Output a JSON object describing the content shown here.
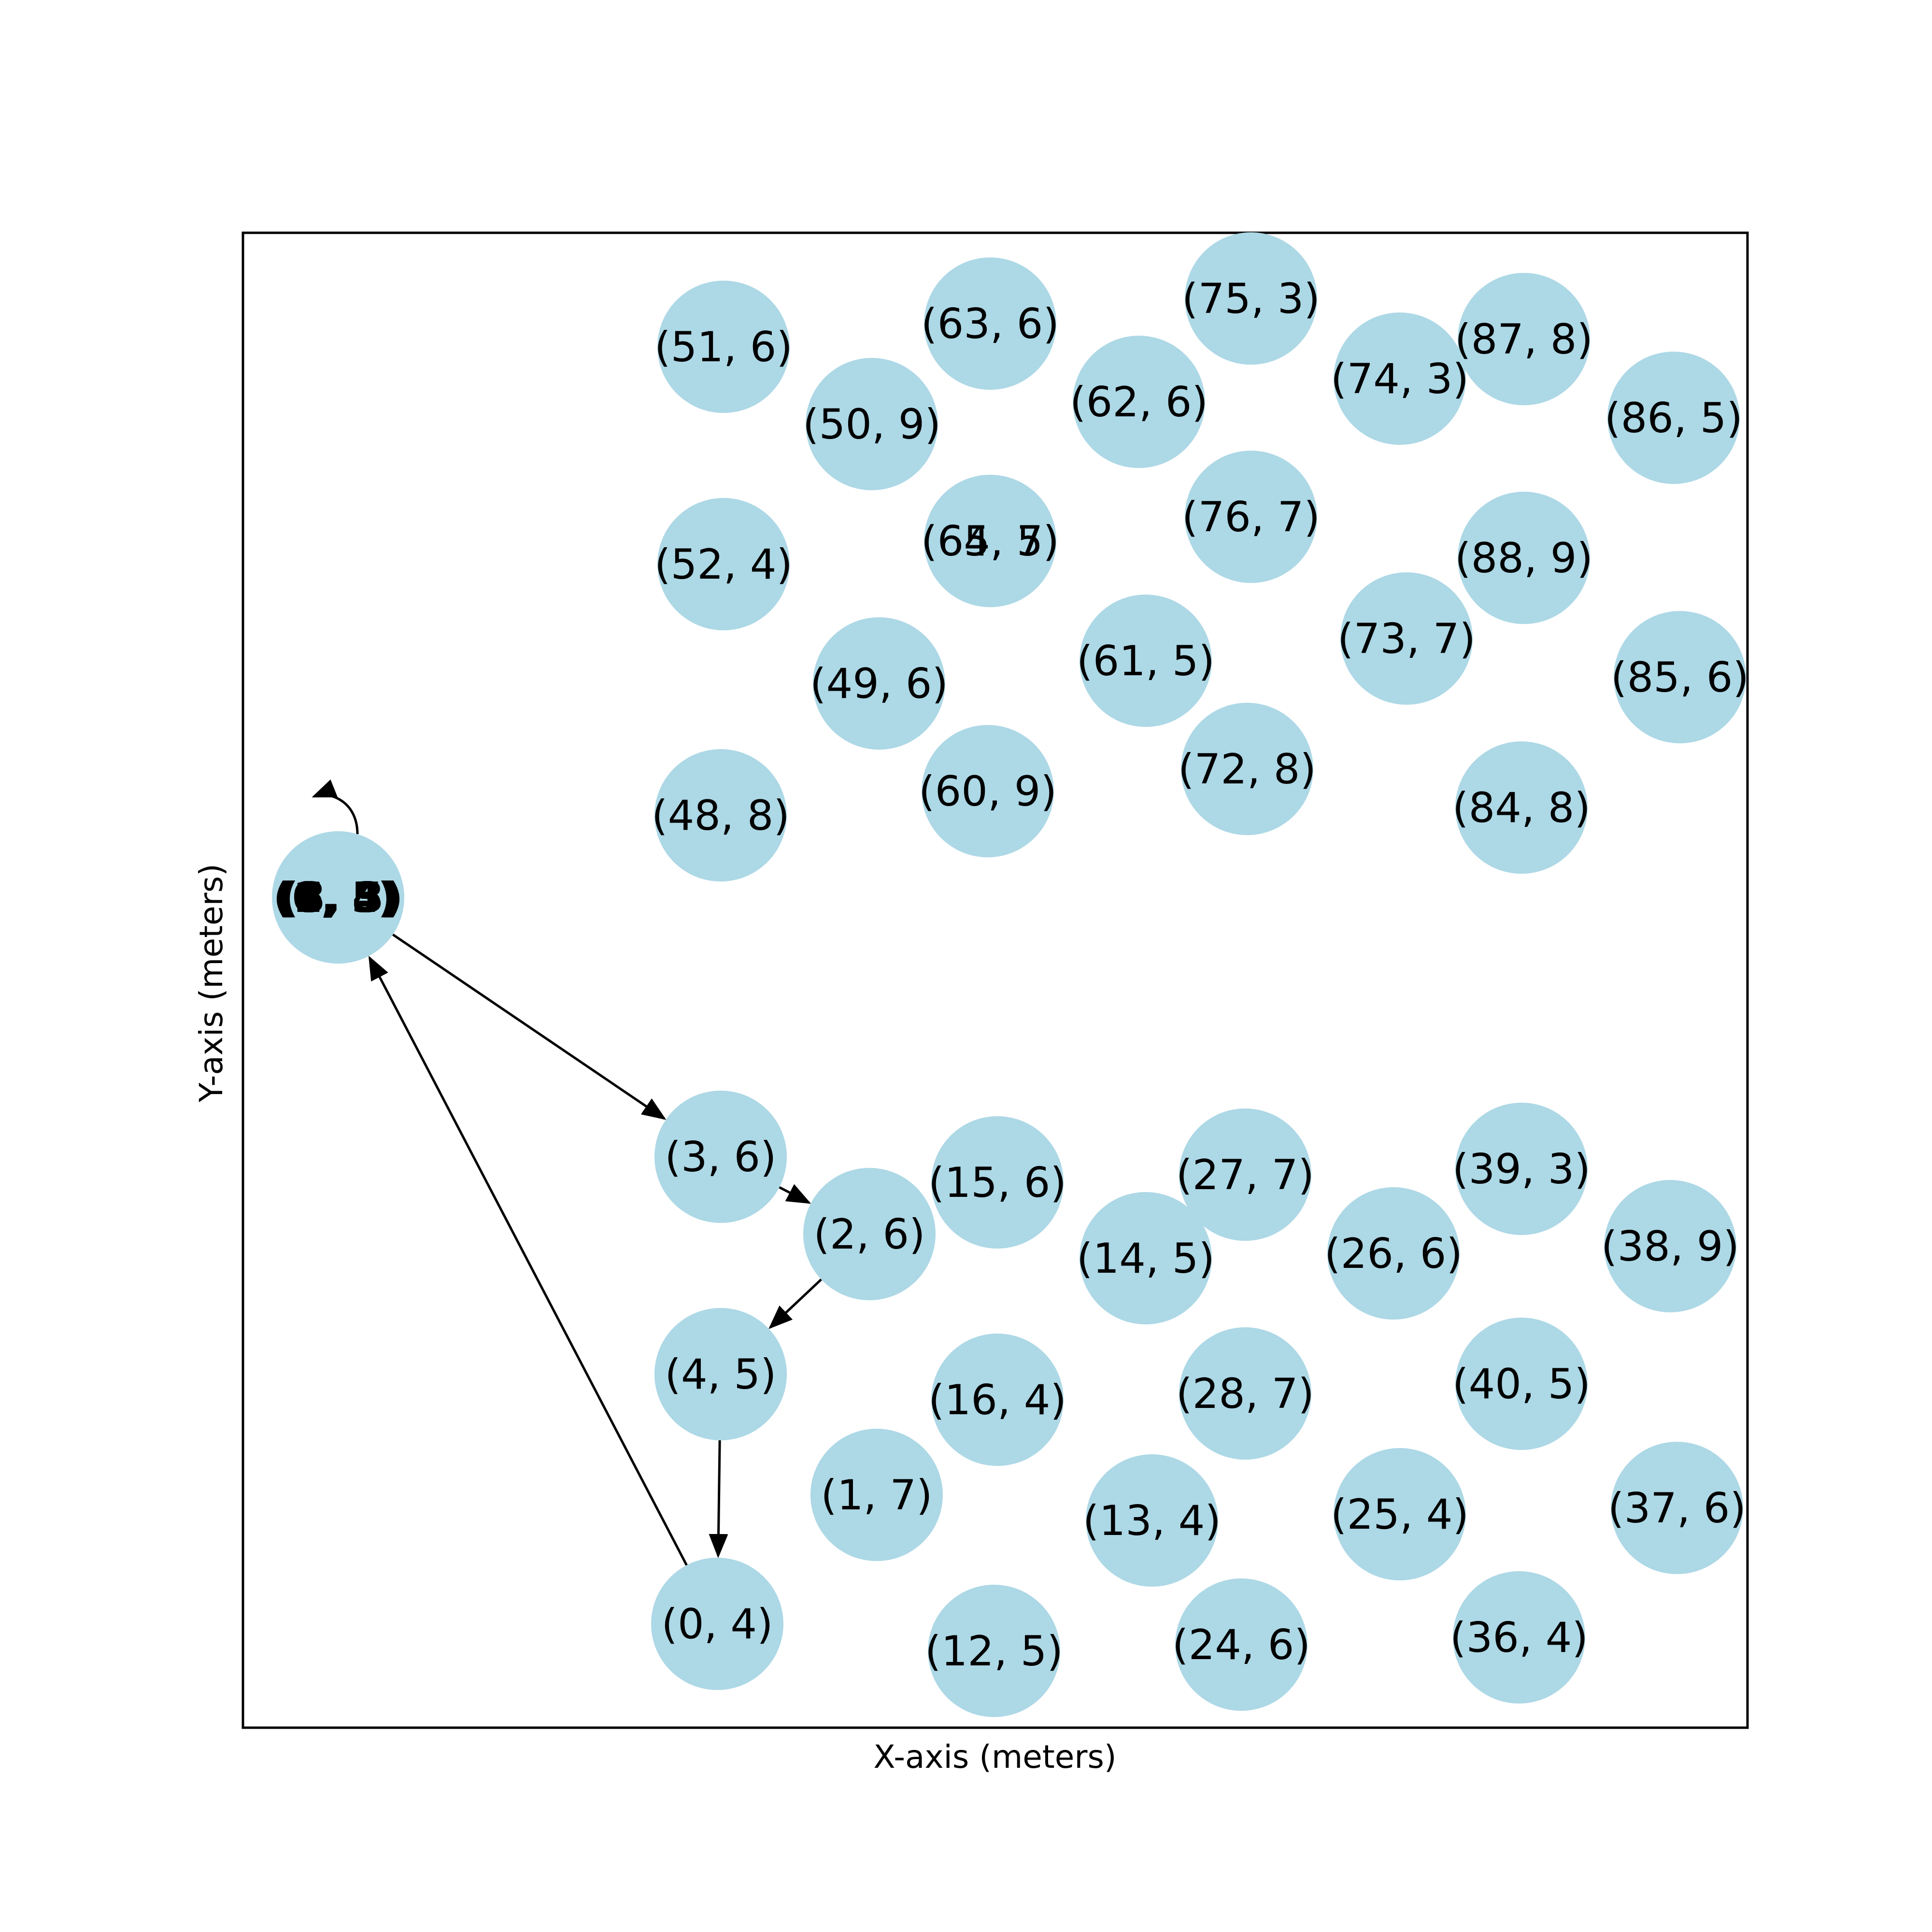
{
  "xlabel": "X-axis (meters)",
  "ylabel": "Y-axis (meters)",
  "colors": {
    "node_fill": "#add8e6",
    "edge": "#000000",
    "frame": "#000000"
  },
  "nodes": [
    {
      "label": "(51, 6)"
    },
    {
      "label": "(63, 6)"
    },
    {
      "label": "(75, 3)"
    },
    {
      "label": "(87, 8)"
    },
    {
      "label": "(50, 9)"
    },
    {
      "label": "(62, 6)"
    },
    {
      "label": "(74, 3)"
    },
    {
      "label": "(86, 5)"
    },
    {
      "label": "(52, 4)"
    },
    {
      "label": "(64, 7)"
    },
    {
      "label": "(65, 5)"
    },
    {
      "label": "(76, 7)"
    },
    {
      "label": "(88, 9)"
    },
    {
      "label": "(49, 6)"
    },
    {
      "label": "(61, 5)"
    },
    {
      "label": "(73, 7)"
    },
    {
      "label": "(85, 6)"
    },
    {
      "label": "(48, 8)"
    },
    {
      "label": "(60, 9)"
    },
    {
      "label": "(72, 8)"
    },
    {
      "label": "(84, 8)"
    },
    {
      "label": "(3, 6)"
    },
    {
      "label": "(2, 6)"
    },
    {
      "label": "(15, 6)"
    },
    {
      "label": "(27, 7)"
    },
    {
      "label": "(39, 3)"
    },
    {
      "label": "(14, 5)"
    },
    {
      "label": "(26, 6)"
    },
    {
      "label": "(38, 9)"
    },
    {
      "label": "(4, 5)"
    },
    {
      "label": "(16, 4)"
    },
    {
      "label": "(28, 7)"
    },
    {
      "label": "(40, 5)"
    },
    {
      "label": "(1, 7)"
    },
    {
      "label": "(13, 4)"
    },
    {
      "label": "(25, 4)"
    },
    {
      "label": "(37, 6)"
    },
    {
      "label": "(0, 4)"
    },
    {
      "label": "(12, 5)"
    },
    {
      "label": "(24, 6)"
    },
    {
      "label": "(36, 4)"
    },
    {
      "label": "(5, 5)"
    }
  ],
  "edges": [
    {
      "from": "(5, 5)",
      "to": "(3, 6)"
    },
    {
      "from": "(3, 6)",
      "to": "(2, 6)"
    },
    {
      "from": "(2, 6)",
      "to": "(4, 5)"
    },
    {
      "from": "(4, 5)",
      "to": "(0, 4)"
    },
    {
      "from": "(0, 4)",
      "to": "(5, 5)"
    },
    {
      "from": "(5, 5)",
      "to": "(5, 5)"
    }
  ]
}
